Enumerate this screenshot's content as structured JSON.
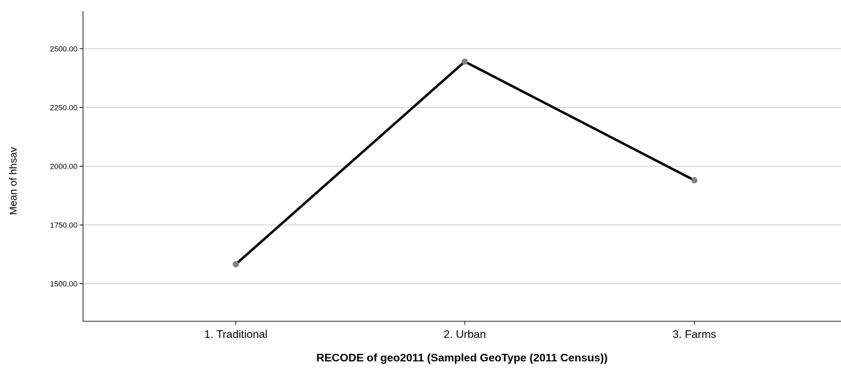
{
  "chart_data": {
    "type": "line",
    "title": "",
    "xlabel": "RECODE of geo2011 (Sampled GeoType (2011 Census))",
    "ylabel": "Mean of hhsav",
    "categories": [
      "1. Traditional",
      "2. Urban",
      "3. Farms"
    ],
    "series": [
      {
        "values": [
          1583,
          2445,
          1940
        ]
      }
    ],
    "ylim": [
      1340,
      2660
    ],
    "yticks": [
      1500,
      1750,
      2000,
      2250,
      2500
    ],
    "ytick_labels": [
      "1500.00",
      "1750.00",
      "2000.00",
      "2250.00",
      "2500.00"
    ],
    "grid": true,
    "line_color": "#000000",
    "marker_color": "#808080"
  }
}
